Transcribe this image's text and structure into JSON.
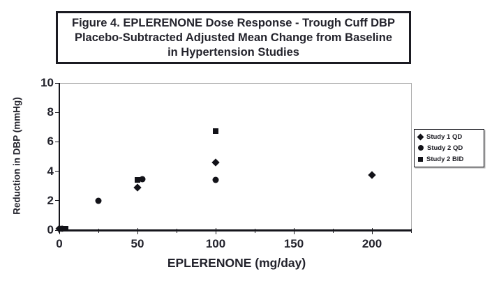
{
  "figure": {
    "title_lines": [
      "Figure 4. EPLERENONE Dose Response - Trough Cuff DBP",
      "Placebo-Subtracted Adjusted Mean Change from Baseline",
      "in Hypertension Studies"
    ]
  },
  "chart_data": {
    "type": "scatter",
    "title": "Figure 4. EPLERENONE Dose Response - Trough Cuff DBP Placebo-Subtracted Adjusted Mean Change from Baseline in Hypertension Studies",
    "xlabel": "EPLERENONE (mg/day)",
    "ylabel": "Reduction in DBP (mmHg)",
    "xlim": [
      0,
      225
    ],
    "ylim": [
      0,
      10
    ],
    "x_major_ticks": [
      0,
      50,
      100,
      150,
      200
    ],
    "x_minor_ticks": [
      25,
      75,
      125,
      175,
      225
    ],
    "y_ticks": [
      0,
      2,
      4,
      6,
      8,
      10
    ],
    "grid": false,
    "legend_position": "outside-right",
    "series": [
      {
        "name": "Study 1 QD",
        "marker": "diamond",
        "points": [
          [
            0,
            0.1
          ],
          [
            50,
            2.9
          ],
          [
            100,
            4.6
          ],
          [
            200,
            3.75
          ]
        ]
      },
      {
        "name": "Study 2 QD",
        "marker": "circle",
        "points": [
          [
            2,
            0.1
          ],
          [
            25,
            2.0
          ],
          [
            53,
            3.45
          ],
          [
            100,
            3.4
          ]
        ]
      },
      {
        "name": "Study 2 BID",
        "marker": "square",
        "points": [
          [
            4,
            0.1
          ],
          [
            50,
            3.4
          ],
          [
            100,
            6.75
          ]
        ]
      }
    ],
    "colors": {
      "marker": "#121218",
      "axis": "#15151b",
      "plot_border": "#a8a8a8",
      "text": "#23232c",
      "background": "#ffffff"
    }
  }
}
